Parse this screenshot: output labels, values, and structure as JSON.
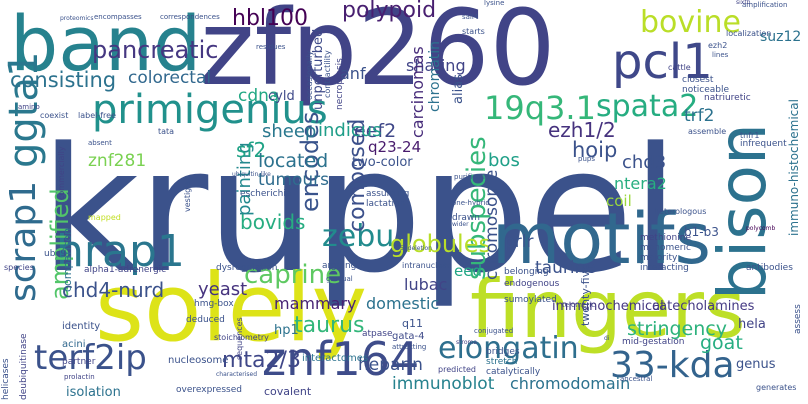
{
  "words": [
    {
      "text": "kruppel",
      "color": "#3b528b"
    },
    {
      "text": "solely",
      "color": "#dde318"
    },
    {
      "text": "fingers",
      "color": "#bddf26"
    },
    {
      "text": "band",
      "color": "#26828e"
    },
    {
      "text": "zfp260",
      "color": "#414487"
    },
    {
      "text": "motifs",
      "color": "#31688e"
    },
    {
      "text": "bison",
      "color": "#2c728e"
    },
    {
      "text": "znf164",
      "color": "#3e4c8a"
    },
    {
      "text": "hrap1",
      "color": "#2a768e"
    },
    {
      "text": "primigenius",
      "color": "#21918c"
    },
    {
      "text": "pcl1",
      "color": "#3f4889"
    },
    {
      "text": "ggta1",
      "color": "#2a788e"
    },
    {
      "text": "scrap1",
      "color": "#2f6b8e"
    },
    {
      "text": "elongatin",
      "color": "#2e6f8e"
    },
    {
      "text": "33-kda",
      "color": "#33638d"
    },
    {
      "text": "19q3.1",
      "color": "#35b779"
    },
    {
      "text": "spata2",
      "color": "#26ad81"
    },
    {
      "text": "bovine",
      "color": "#bade28"
    },
    {
      "text": "pancreatic",
      "color": "#453781"
    },
    {
      "text": "terf2ip",
      "color": "#3b528b"
    },
    {
      "text": "zebu",
      "color": "#228b8d"
    },
    {
      "text": "caprine",
      "color": "#5ec962"
    },
    {
      "text": "subspecies",
      "color": "#35b779"
    },
    {
      "text": "amplified",
      "color": "#52c569"
    },
    {
      "text": "chd4-nurd",
      "color": "#3b528b"
    },
    {
      "text": "hbl100",
      "color": "#440154"
    },
    {
      "text": "polypoid",
      "color": "#481f70"
    },
    {
      "text": "consisting",
      "color": "#2c728e"
    },
    {
      "text": "colorectal",
      "color": "#31688e"
    },
    {
      "text": "taurus",
      "color": "#32b67a"
    },
    {
      "text": "mta2/3",
      "color": "#3f4788"
    },
    {
      "text": "globules",
      "color": "#b8de29"
    },
    {
      "text": "encodes",
      "color": "#3a548c"
    },
    {
      "text": "composed",
      "color": "#3c508b"
    },
    {
      "text": "bovids",
      "color": "#27ad81"
    },
    {
      "text": "painting",
      "color": "#23898e"
    },
    {
      "text": "yeast",
      "color": "#46337e"
    },
    {
      "text": "heparin",
      "color": "#3b528b"
    },
    {
      "text": "stringency",
      "color": "#2db27d"
    },
    {
      "text": "goat",
      "color": "#26ad81"
    },
    {
      "text": "eef2",
      "color": "#3f4788"
    },
    {
      "text": "sf2",
      "color": "#20a386"
    },
    {
      "text": "sheep",
      "color": "#2a788e"
    },
    {
      "text": "indicus",
      "color": "#1f9e89"
    },
    {
      "text": "located",
      "color": "#2c728e"
    },
    {
      "text": "tumours",
      "color": "#2f6c8e"
    },
    {
      "text": "hoip",
      "color": "#3b528b"
    },
    {
      "text": "ezh1/2",
      "color": "#46327e"
    },
    {
      "text": "bos",
      "color": "#1fa088"
    },
    {
      "text": "trf2",
      "color": "#2c728e"
    },
    {
      "text": "chd3",
      "color": "#3b528b"
    },
    {
      "text": "chromosome",
      "color": "#3b528b"
    },
    {
      "text": "ntera2",
      "color": "#28ae80"
    },
    {
      "text": "prlr",
      "color": "#3a548c"
    },
    {
      "text": "taurine",
      "color": "#3b528b"
    },
    {
      "text": "b1-b3",
      "color": "#3b528b"
    },
    {
      "text": "coil",
      "color": "#9bd93c"
    },
    {
      "text": "eed",
      "color": "#21a685"
    },
    {
      "text": "lubac",
      "color": "#414487"
    },
    {
      "text": "domestic",
      "color": "#2c728e"
    },
    {
      "text": "mammary",
      "color": "#482475"
    },
    {
      "text": "immunoblot",
      "color": "#26828e"
    },
    {
      "text": "chromodomain",
      "color": "#2c728e"
    },
    {
      "text": "immunochemical",
      "color": "#453781"
    },
    {
      "text": "catecholamines",
      "color": "#443983"
    },
    {
      "text": "genus",
      "color": "#3b528b"
    },
    {
      "text": "hela",
      "color": "#414487"
    },
    {
      "text": "znf281",
      "color": "#7ad151"
    },
    {
      "text": "cdna",
      "color": "#22a884"
    },
    {
      "text": "suz12",
      "color": "#2c728e"
    },
    {
      "text": "alias",
      "color": "#3b528b"
    },
    {
      "text": "sharing",
      "color": "#414487"
    },
    {
      "text": "carcinomas",
      "color": "#472c7a"
    },
    {
      "text": "chromatin",
      "color": "#2c728e"
    },
    {
      "text": "unperturbed",
      "color": "#3e4a89"
    },
    {
      "text": "anf",
      "color": "#3b528b"
    },
    {
      "text": "cyld",
      "color": "#3e4989"
    },
    {
      "text": "q23-24",
      "color": "#481b6d"
    },
    {
      "text": "two-color",
      "color": "#3b528b"
    },
    {
      "text": "immuno-histochemical",
      "color": "#2c728e"
    },
    {
      "text": "twenty-five",
      "color": "#3b528b"
    },
    {
      "text": "hp1",
      "color": "#2c728e"
    },
    {
      "text": "q11",
      "color": "#3b528b"
    },
    {
      "text": "gata-4",
      "color": "#3e4a89"
    },
    {
      "text": "covalent",
      "color": "#414487"
    },
    {
      "text": "isolation",
      "color": "#2c728e"
    },
    {
      "text": "nucleosome",
      "color": "#3b528b"
    },
    {
      "text": "interactomes",
      "color": "#2c728e"
    },
    {
      "text": "acini",
      "color": "#31688e"
    },
    {
      "text": "identity",
      "color": "#3b528b"
    },
    {
      "text": "partner",
      "color": "#414487"
    },
    {
      "text": "comparison",
      "color": "#2c728e"
    },
    {
      "text": "ubc9",
      "color": "#3b528b"
    },
    {
      "text": "sumoylated",
      "color": "#3b528b"
    },
    {
      "text": "endogenous",
      "color": "#414487"
    },
    {
      "text": "belonging",
      "color": "#3b528b"
    },
    {
      "text": "majority",
      "color": "#3b528b"
    },
    {
      "text": "monomeric",
      "color": "#3b528b"
    },
    {
      "text": "interacting",
      "color": "#3b528b"
    },
    {
      "text": "methionine",
      "color": "#414487"
    },
    {
      "text": "bridges",
      "color": "#3b528b"
    },
    {
      "text": "stretch",
      "color": "#2c728e"
    },
    {
      "text": "catalytically",
      "color": "#3b528b"
    },
    {
      "text": "predicted",
      "color": "#414487"
    },
    {
      "text": "overexpressed",
      "color": "#3b528b"
    },
    {
      "text": "deduced",
      "color": "#3b528b"
    },
    {
      "text": "stoichiometry",
      "color": "#414487"
    },
    {
      "text": "hmg-box",
      "color": "#3b528b"
    },
    {
      "text": "atpase",
      "color": "#414487"
    },
    {
      "text": "drawn",
      "color": "#3b528b"
    },
    {
      "text": "assuming",
      "color": "#3b528b"
    },
    {
      "text": "lactation",
      "color": "#3b528b"
    },
    {
      "text": "intranuclear",
      "color": "#3b528b"
    },
    {
      "text": "escherichia",
      "color": "#3b528b"
    },
    {
      "text": "dysregulation",
      "color": "#3b528b"
    },
    {
      "text": "alpha1-adrenergic",
      "color": "#414487"
    },
    {
      "text": "arguing",
      "color": "#3b528b"
    },
    {
      "text": "species",
      "color": "#414487"
    },
    {
      "text": "helicases",
      "color": "#3b528b"
    },
    {
      "text": "deubiquitinase",
      "color": "#414487"
    },
    {
      "text": "antibodies",
      "color": "#3b528b"
    },
    {
      "text": "assess",
      "color": "#3b528b"
    },
    {
      "text": "telomeric",
      "color": "#414487"
    },
    {
      "text": "infrequent",
      "color": "#3b528b"
    },
    {
      "text": "closest",
      "color": "#3b528b"
    },
    {
      "text": "noticeable",
      "color": "#3b528b"
    },
    {
      "text": "natriuretic",
      "color": "#414487"
    },
    {
      "text": "assemble",
      "color": "#3b528b"
    },
    {
      "text": "tnfr1",
      "color": "#3b528b"
    },
    {
      "text": "polycomb",
      "color": "#440154"
    },
    {
      "text": "ezh2",
      "color": "#3b528b"
    },
    {
      "text": "lines",
      "color": "#3b528b"
    },
    {
      "text": "cattle",
      "color": "#414487"
    },
    {
      "text": "localization",
      "color": "#3b528b"
    },
    {
      "text": "amplification",
      "color": "#3b528b"
    },
    {
      "text": "sixth",
      "color": "#414487"
    },
    {
      "text": "starts",
      "color": "#3b528b"
    },
    {
      "text": "sall4",
      "color": "#3b528b"
    },
    {
      "text": "lysine",
      "color": "#3b528b"
    },
    {
      "text": "residues",
      "color": "#3b528b"
    },
    {
      "text": "contractility",
      "color": "#3b528b"
    },
    {
      "text": "occasionally",
      "color": "#3b528b"
    },
    {
      "text": "necroptosis",
      "color": "#414487"
    },
    {
      "text": "label-free",
      "color": "#3b528b"
    },
    {
      "text": "coexist",
      "color": "#3b528b"
    },
    {
      "text": "amino",
      "color": "#414487"
    },
    {
      "text": "tata",
      "color": "#3b528b"
    },
    {
      "text": "absent",
      "color": "#3b528b"
    },
    {
      "text": "commercially",
      "color": "#414487"
    },
    {
      "text": "mapped",
      "color": "#c2df23"
    },
    {
      "text": "encompasses",
      "color": "#3b528b"
    },
    {
      "text": "correspondences",
      "color": "#3b528b"
    },
    {
      "text": "proteomics",
      "color": "#3b528b"
    },
    {
      "text": "vestigial",
      "color": "#3b528b"
    },
    {
      "text": "ubiquitin-like",
      "color": "#3b528b"
    },
    {
      "text": "purification",
      "color": "#3b528b"
    },
    {
      "text": "conjugated",
      "color": "#3b528b"
    },
    {
      "text": "ancestral",
      "color": "#3b528b"
    },
    {
      "text": "mid-gestation",
      "color": "#414487"
    },
    {
      "text": "di",
      "color": "#3b528b"
    },
    {
      "text": "stroma",
      "color": "#414487"
    },
    {
      "text": "generates",
      "color": "#3b528b"
    },
    {
      "text": "pups",
      "color": "#3b528b"
    },
    {
      "text": "prolactin",
      "color": "#414487"
    },
    {
      "text": "characterised",
      "color": "#3b528b"
    },
    {
      "text": "sequences",
      "color": "#414487"
    },
    {
      "text": "one-hybrid",
      "color": "#3b528b"
    },
    {
      "text": "wider",
      "color": "#3b528b"
    },
    {
      "text": "heterologous",
      "color": "#3b528b"
    },
    {
      "text": "5'-deletion",
      "color": "#3b528b"
    },
    {
      "text": "attracting",
      "color": "#3b528b"
    },
    {
      "text": "gradual",
      "color": "#3b528b"
    },
    {
      "text": "devoid",
      "color": "#3b528b"
    }
  ]
}
